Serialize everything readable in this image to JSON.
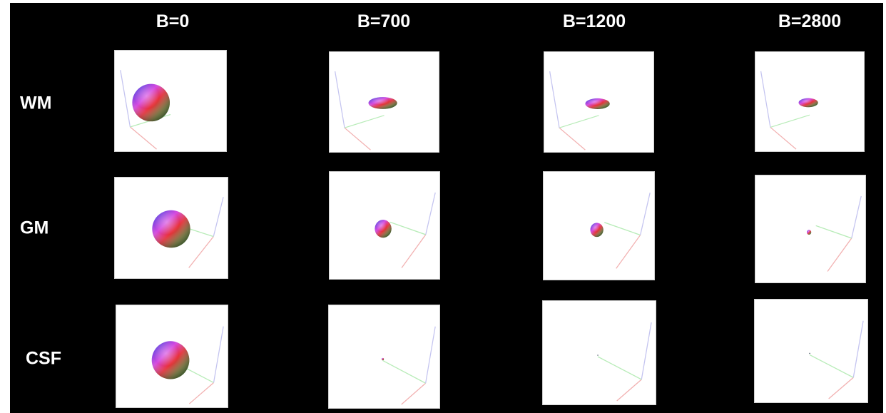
{
  "columns": [
    "B=0",
    "B=700",
    "B=1200",
    "B=2800"
  ],
  "rows": [
    {
      "label": "WM",
      "glyph": "oblate-ellipsoid",
      "cells": [
        {
          "b_value": "B=0",
          "relative_size": 1.0,
          "flattening": 1.0
        },
        {
          "b_value": "B=700",
          "relative_size": 0.82,
          "flattening": 0.52
        },
        {
          "b_value": "B=1200",
          "relative_size": 0.7,
          "flattening": 0.55
        },
        {
          "b_value": "B=2800",
          "relative_size": 0.56,
          "flattening": 0.58
        }
      ]
    },
    {
      "label": "GM",
      "glyph": "sphere",
      "cells": [
        {
          "b_value": "B=0",
          "relative_size": 1.0
        },
        {
          "b_value": "B=700",
          "relative_size": 0.45
        },
        {
          "b_value": "B=1200",
          "relative_size": 0.35
        },
        {
          "b_value": "B=2800",
          "relative_size": 0.12
        }
      ]
    },
    {
      "label": "CSF",
      "glyph": "sphere",
      "cells": [
        {
          "b_value": "B=0",
          "relative_size": 1.0
        },
        {
          "b_value": "B=700",
          "relative_size": 0.06
        },
        {
          "b_value": "B=1200",
          "relative_size": 0.02
        },
        {
          "b_value": "B=2800",
          "relative_size": 0.02
        }
      ]
    }
  ],
  "colors": {
    "background": "#000000",
    "panel": "#ffffff",
    "text": "#ffffff",
    "axis_x": "#f2b0b0",
    "axis_y": "#b8ecb8",
    "axis_z": "#c4c4f0",
    "glyph_red": "#e8303a",
    "glyph_green": "#2f8f3a",
    "glyph_blue": "#2a3fe0",
    "glyph_magenta": "#d548e0"
  }
}
